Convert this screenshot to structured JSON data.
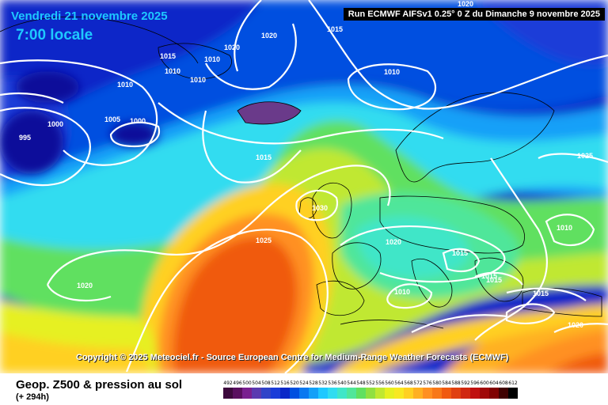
{
  "header": {
    "date": "Vendredi 21 novembre 2025",
    "local_time": "7:00 locale",
    "run_info": "Run ECMWF AIFSv1 0.25° 0 Z du Dimanche 9 novembre 2025"
  },
  "copyright": "Copyright © 2025 Meteociel.fr - Source European Centre for Medium-Range Weather Forecasts (ECMWF)",
  "footer": {
    "title": "Geop. Z500 & pression au sol",
    "lead_time": "(+ 294h)"
  },
  "isobar_labels": [
    "1020",
    "1015",
    "1015",
    "1010",
    "1010",
    "1020",
    "1020",
    "1010",
    "1010",
    "1005",
    "1000",
    "1000",
    "995",
    "1015",
    "1030",
    "1025",
    "1020",
    "1020",
    "1015",
    "1015",
    "1015",
    "1010",
    "1010",
    "1015",
    "1025",
    "1010",
    "1020"
  ],
  "colorscale": {
    "values": [
      "492",
      "496",
      "500",
      "504",
      "508",
      "512",
      "516",
      "520",
      "524",
      "528",
      "532",
      "536",
      "540",
      "544",
      "548",
      "552",
      "556",
      "560",
      "564",
      "568",
      "572",
      "576",
      "580",
      "584",
      "588",
      "592",
      "596",
      "600",
      "604",
      "608",
      "612"
    ],
    "colors": [
      "#3d0a3d",
      "#5a1060",
      "#7a2090",
      "#5a3ab0",
      "#3044c8",
      "#1a3cd8",
      "#0a28c8",
      "#0050e0",
      "#0a78f0",
      "#14a0f8",
      "#1ec8ff",
      "#30dcf0",
      "#40e6c8",
      "#50e69a",
      "#60e060",
      "#90e040",
      "#c0e830",
      "#e6f020",
      "#f8e820",
      "#ffd020",
      "#ffb020",
      "#ff9020",
      "#f87818",
      "#f05a10",
      "#e04010",
      "#d02810",
      "#c01010",
      "#a00808",
      "#800000",
      "#400000",
      "#000000"
    ]
  }
}
